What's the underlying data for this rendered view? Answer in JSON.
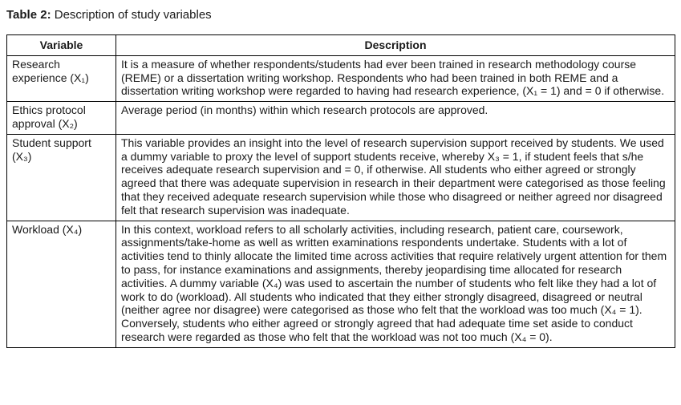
{
  "caption": {
    "label": "Table 2:",
    "text": " Description of study variables"
  },
  "table": {
    "headers": {
      "variable": "Variable",
      "description": "Description"
    },
    "rows": [
      {
        "variable": "Research experience (X₁)",
        "description": "It is a measure of whether respondents/students had ever been trained in research methodology course (REME) or a dissertation writing workshop. Respondents who had been trained in both REME and a dissertation writing workshop were regarded to having had research experience, (X₁ = 1) and = 0 if otherwise."
      },
      {
        "variable": "Ethics protocol approval (X₂)",
        "description": "Average period (in months) within which research protocols are approved."
      },
      {
        "variable": "Student support (X₃)",
        "description": "This variable provides an insight into the level of research supervision support received by students. We used a dummy variable to proxy the level of support students receive, whereby X₃ = 1, if student feels that s/he receives adequate research supervision and = 0, if otherwise. All students who either agreed or strongly agreed that there was adequate supervision in research in their department were categorised as those feeling that they received adequate research supervision while those who disagreed or neither agreed nor disagreed felt that research supervision was inadequate."
      },
      {
        "variable": "Workload (X₄)",
        "description": "In this context, workload refers to all scholarly activities, including research, patient care, coursework, assignments/take-home as well as written examinations respondents undertake. Students with a lot of activities tend to thinly allocate the limited time across activities that require relatively urgent attention for them to pass, for instance examinations and assignments, thereby jeopardising time allocated for research activities. A dummy variable (X₄) was used to ascertain the number of students who felt like they had a lot of work to do (workload). All students who indicated that they either strongly disagreed, disagreed or neutral (neither agree nor disagree) were categorised as those who felt that the workload was too much (X₄ = 1). Conversely, students who either agreed or strongly agreed that had adequate time set aside to conduct research were regarded as those who felt that the workload was not too much (X₄ = 0)."
      }
    ]
  }
}
